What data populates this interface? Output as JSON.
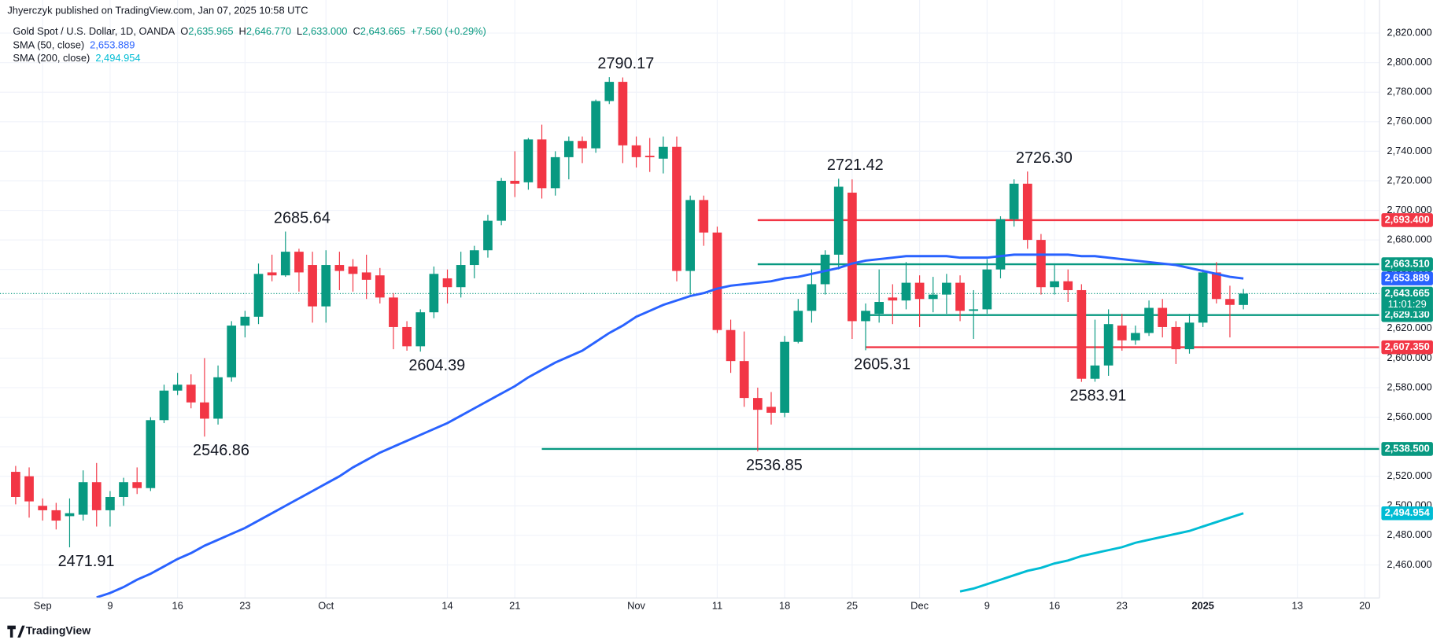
{
  "header": {
    "published": "Jhyerczyk published on TradingView.com, Jan 07, 2025 10:58 UTC",
    "symbol": "Gold Spot / U.S. Dollar, 1D, OANDA",
    "ohlc": [
      {
        "key": "O",
        "value": "2,635.965"
      },
      {
        "key": "H",
        "value": "2,646.770"
      },
      {
        "key": "L",
        "value": "2,633.000"
      },
      {
        "key": "C",
        "value": "2,643.665"
      }
    ],
    "change": "+7.560 (+0.29%)"
  },
  "footer": "TradingView",
  "chart_data": {
    "type": "candlestick",
    "up_color": "#089981",
    "down_color": "#f23645",
    "grid": true,
    "xlim": [
      -1.16,
      101.09
    ],
    "ylim": [
      2437.6,
      2828.7
    ],
    "xticks": [
      {
        "value": 2,
        "label": "Sep"
      },
      {
        "value": 7,
        "label": "9"
      },
      {
        "value": 12,
        "label": "16"
      },
      {
        "value": 17,
        "label": "23"
      },
      {
        "value": 23,
        "label": "Oct"
      },
      {
        "value": 32,
        "label": "14"
      },
      {
        "value": 37,
        "label": "21"
      },
      {
        "value": 46,
        "label": "Nov"
      },
      {
        "value": 52,
        "label": "11"
      },
      {
        "value": 57,
        "label": "18"
      },
      {
        "value": 62,
        "label": "25"
      },
      {
        "value": 67,
        "label": "Dec"
      },
      {
        "value": 72,
        "label": "9"
      },
      {
        "value": 77,
        "label": "16"
      },
      {
        "value": 82,
        "label": "23"
      },
      {
        "value": 88,
        "label": "2025"
      },
      {
        "value": 95,
        "label": "13"
      },
      {
        "value": 100,
        "label": "20"
      }
    ],
    "yticks": [
      {
        "value": 2460,
        "label": "2,460.000"
      },
      {
        "value": 2480,
        "label": "2,480.000"
      },
      {
        "value": 2500,
        "label": "2,500.000"
      },
      {
        "value": 2520,
        "label": "2,520.000"
      },
      {
        "value": 2540,
        "label": "2,540.000"
      },
      {
        "value": 2560,
        "label": "2,560.000"
      },
      {
        "value": 2580,
        "label": "2,580.000"
      },
      {
        "value": 2600,
        "label": "2,600.000"
      },
      {
        "value": 2620,
        "label": "2,620.000"
      },
      {
        "value": 2640,
        "label": "2,640.000"
      },
      {
        "value": 2660,
        "label": "2,660.000"
      },
      {
        "value": 2680,
        "label": "2,680.000"
      },
      {
        "value": 2700,
        "label": "2,700.000"
      },
      {
        "value": 2720,
        "label": "2,720.000"
      },
      {
        "value": 2740,
        "label": "2,740.000"
      },
      {
        "value": 2760,
        "label": "2,760.000"
      },
      {
        "value": 2780,
        "label": "2,780.000"
      },
      {
        "value": 2800,
        "label": "2,800.000"
      },
      {
        "value": 2820,
        "label": "2,820.000"
      }
    ],
    "candles": {
      "x": [
        0,
        1,
        2,
        3,
        4,
        5,
        6,
        7,
        8,
        9,
        10,
        11,
        12,
        13,
        14,
        15,
        16,
        17,
        18,
        19,
        20,
        21,
        22,
        23,
        24,
        25,
        26,
        27,
        28,
        29,
        30,
        31,
        32,
        33,
        34,
        35,
        36,
        37,
        38,
        39,
        40,
        41,
        42,
        43,
        44,
        45,
        46,
        47,
        48,
        49,
        50,
        51,
        52,
        53,
        54,
        55,
        56,
        57,
        58,
        59,
        60,
        61,
        62,
        63,
        64,
        65,
        66,
        67,
        68,
        69,
        70,
        71,
        72,
        73,
        74,
        75,
        76,
        77,
        78,
        79,
        80,
        81,
        82,
        83,
        84,
        85,
        86,
        87,
        88,
        89,
        90,
        91
      ],
      "open": [
        2523,
        2520,
        2500,
        2497,
        2493,
        2494,
        2516,
        2497,
        2506,
        2516,
        2512,
        2558,
        2578,
        2582,
        2570,
        2559,
        2587,
        2622,
        2628,
        2658,
        2656,
        2672,
        2663,
        2635,
        2663,
        2662,
        2658,
        2656,
        2641,
        2621,
        2608,
        2631,
        2654,
        2648,
        2663,
        2673,
        2693,
        2720,
        2719,
        2748,
        2715,
        2736,
        2747,
        2742,
        2774,
        2787,
        2744,
        2737,
        2735,
        2743,
        2659,
        2707,
        2685,
        2619,
        2598,
        2573,
        2567,
        2563,
        2611,
        2632,
        2650,
        2670,
        2712,
        2625,
        2630,
        2641,
        2639,
        2651,
        2640,
        2643,
        2651,
        2632,
        2633,
        2660,
        2694,
        2718,
        2680,
        2648,
        2652,
        2646,
        2586,
        2595,
        2622,
        2612,
        2617,
        2634,
        2621,
        2606,
        2624,
        2658,
        2640,
        2635.965
      ],
      "high": [
        2527,
        2526,
        2505,
        2502,
        2505,
        2524,
        2529,
        2510,
        2519,
        2526,
        2560,
        2582,
        2590,
        2589,
        2600,
        2595,
        2625,
        2632,
        2664,
        2670,
        2685.64,
        2674,
        2672,
        2673,
        2672,
        2667,
        2670,
        2661,
        2644,
        2625,
        2633,
        2662,
        2660,
        2672,
        2676,
        2697,
        2722,
        2740,
        2749,
        2758,
        2740,
        2750,
        2750,
        2775,
        2790.17,
        2790,
        2750,
        2749,
        2750,
        2750,
        2710,
        2710,
        2689,
        2626,
        2618,
        2580,
        2577,
        2615,
        2640,
        2660,
        2673,
        2721.42,
        2721,
        2637,
        2660,
        2650,
        2665,
        2656,
        2655,
        2657,
        2656,
        2646,
        2667,
        2696,
        2721,
        2726.3,
        2684,
        2663,
        2660,
        2650,
        2626,
        2633,
        2630,
        2622,
        2639,
        2640,
        2625,
        2630,
        2660,
        2665,
        2649,
        2646.77
      ],
      "low": [
        2501,
        2492,
        2490,
        2484,
        2471.91,
        2490,
        2486,
        2486,
        2500,
        2508,
        2510,
        2556,
        2575,
        2566,
        2546.86,
        2555,
        2584,
        2614,
        2623,
        2652,
        2655,
        2645,
        2624,
        2624,
        2646,
        2645,
        2640,
        2637,
        2606,
        2605,
        2604.39,
        2627,
        2637,
        2641,
        2654,
        2668,
        2690,
        2709,
        2714,
        2708,
        2710,
        2721,
        2732,
        2739,
        2772,
        2732,
        2729,
        2726,
        2725,
        2652,
        2643,
        2676,
        2617,
        2590,
        2567,
        2536.85,
        2555,
        2560,
        2610,
        2624,
        2643,
        2660,
        2613,
        2605.31,
        2624,
        2623,
        2633,
        2621,
        2631,
        2630,
        2625,
        2613,
        2630,
        2654,
        2689,
        2674,
        2643,
        2643,
        2638,
        2583.91,
        2584,
        2588,
        2605,
        2609,
        2615,
        2614,
        2596,
        2603,
        2621,
        2637,
        2614,
        2633
      ],
      "close": [
        2506,
        2503,
        2497,
        2490,
        2495,
        2516,
        2497,
        2506,
        2516,
        2512,
        2558,
        2578,
        2582,
        2570,
        2559,
        2587,
        2622,
        2628,
        2657,
        2656,
        2672,
        2658,
        2635,
        2663,
        2659,
        2657,
        2653,
        2641,
        2621,
        2608,
        2631,
        2657,
        2648,
        2663,
        2673,
        2693,
        2720,
        2718,
        2748,
        2715,
        2736,
        2747,
        2742,
        2774,
        2787,
        2744,
        2736,
        2736,
        2743,
        2659,
        2707,
        2685,
        2619,
        2598,
        2573,
        2565,
        2563,
        2611,
        2632,
        2650,
        2670,
        2716,
        2625,
        2632,
        2638,
        2639,
        2651,
        2640,
        2643,
        2651,
        2632,
        2633,
        2660,
        2694,
        2718,
        2680,
        2648,
        2652,
        2646,
        2586,
        2595,
        2623,
        2612,
        2617,
        2634,
        2621,
        2606,
        2624,
        2658,
        2640,
        2636,
        2643.665
      ]
    },
    "price_line": {
      "label": "2,643.665",
      "countdown": "11:01:29"
    },
    "series": [
      {
        "name": "SMA (50, close)",
        "color": "#2962ff",
        "last_label": "2,653.889",
        "values": [
          null,
          null,
          null,
          null,
          null,
          null,
          2438,
          2441,
          2445,
          2450,
          2454,
          2459,
          2464,
          2468,
          2473,
          2477,
          2481,
          2485,
          2490,
          2495,
          2500,
          2505,
          2510,
          2515,
          2520,
          2526,
          2531,
          2536,
          2540,
          2544,
          2548,
          2552,
          2556,
          2561,
          2566,
          2571,
          2576,
          2581,
          2587,
          2592,
          2597,
          2601,
          2605,
          2611,
          2617,
          2622,
          2628,
          2632,
          2636,
          2639,
          2642,
          2644,
          2647,
          2649,
          2650,
          2651,
          2652,
          2654,
          2655,
          2657,
          2659,
          2661,
          2664,
          2666,
          2667,
          2668,
          2669,
          2669,
          2669,
          2669,
          2668,
          2668,
          2668,
          2669,
          2670,
          2670,
          2670,
          2670,
          2670,
          2669,
          2669,
          2668,
          2667,
          2666,
          2665,
          2664,
          2663,
          2661,
          2659,
          2657,
          2655,
          2653.889
        ]
      },
      {
        "name": "SMA (200, close)",
        "color": "#00bcd4",
        "last_label": "2,494.954",
        "values": [
          null,
          null,
          null,
          null,
          null,
          null,
          null,
          null,
          null,
          null,
          null,
          null,
          null,
          null,
          null,
          null,
          null,
          null,
          null,
          null,
          null,
          null,
          null,
          null,
          null,
          null,
          null,
          null,
          null,
          null,
          null,
          null,
          null,
          null,
          null,
          null,
          null,
          null,
          null,
          null,
          null,
          null,
          null,
          null,
          null,
          null,
          null,
          null,
          null,
          null,
          null,
          null,
          null,
          null,
          null,
          null,
          null,
          null,
          null,
          null,
          null,
          null,
          null,
          null,
          null,
          null,
          null,
          null,
          null,
          null,
          2442,
          2444,
          2447,
          2450,
          2453,
          2456,
          2458,
          2461,
          2463,
          2466,
          2468,
          2470,
          2472,
          2475,
          2477,
          2479,
          2481,
          2483,
          2486,
          2489,
          2492,
          2494.954
        ]
      }
    ],
    "levels": [
      {
        "value": 2693.4,
        "label": "2,693.400",
        "color": "#f23645",
        "start": 55
      },
      {
        "value": 2663.51,
        "label": "2,663.510",
        "color": "#089981",
        "start": 55
      },
      {
        "value": 2629.13,
        "label": "2,629.130",
        "color": "#089981",
        "start": 63
      },
      {
        "value": 2607.35,
        "label": "2,607.350",
        "color": "#f23645",
        "start": 63
      },
      {
        "value": 2538.5,
        "label": "2,538.500",
        "color": "#089981",
        "start": 39
      }
    ],
    "annotations": [
      {
        "value": 2790.17,
        "x": 44,
        "side": "above"
      },
      {
        "value": 2721.42,
        "x": 61,
        "side": "above"
      },
      {
        "value": 2726.3,
        "label": "2726.30",
        "x": 75,
        "side": "above"
      },
      {
        "value": 2685.64,
        "x": 20,
        "side": "above"
      },
      {
        "value": 2604.39,
        "x": 30,
        "side": "below"
      },
      {
        "value": 2605.31,
        "x": 63,
        "side": "below"
      },
      {
        "value": 2583.91,
        "x": 79,
        "side": "below"
      },
      {
        "value": 2546.86,
        "x": 14,
        "side": "below"
      },
      {
        "value": 2536.85,
        "x": 55,
        "side": "below"
      },
      {
        "value": 2471.91,
        "x": 4,
        "side": "below"
      }
    ]
  }
}
